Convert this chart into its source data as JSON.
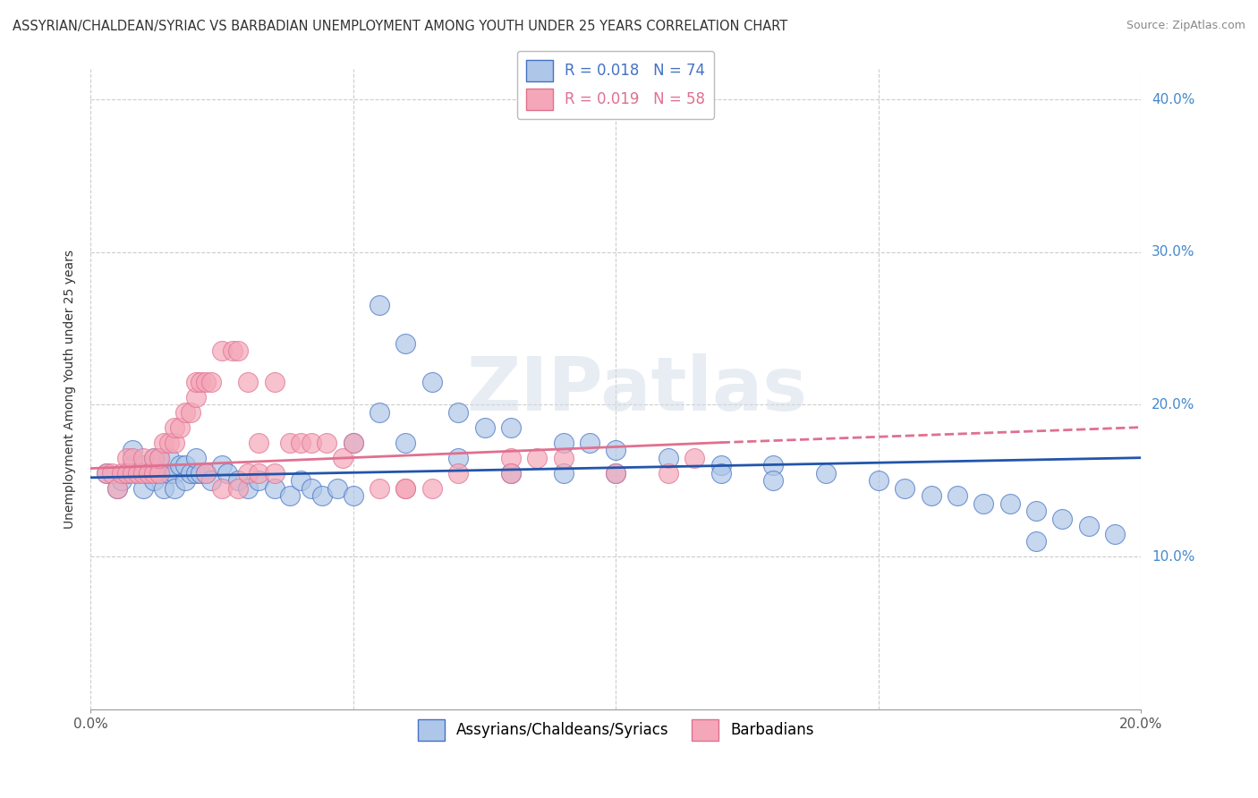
{
  "title": "ASSYRIAN/CHALDEAN/SYRIAC VS BARBADIAN UNEMPLOYMENT AMONG YOUTH UNDER 25 YEARS CORRELATION CHART",
  "source": "Source: ZipAtlas.com",
  "ylabel": "Unemployment Among Youth under 25 years",
  "legend_bottom": [
    "Assyrians/Chaldeans/Syriacs",
    "Barbadians"
  ],
  "legend_r1": "R = 0.018",
  "legend_n1": "N = 74",
  "legend_r2": "R = 0.019",
  "legend_n2": "N = 58",
  "xmin": 0.0,
  "xmax": 0.2,
  "ymin": 0.0,
  "ymax": 0.42,
  "yticks": [
    0.1,
    0.2,
    0.3,
    0.4
  ],
  "ytick_labels": [
    "10.0%",
    "20.0%",
    "30.0%",
    "40.0%"
  ],
  "xticks": [
    0.0,
    0.2
  ],
  "xtick_labels": [
    "0.0%",
    "20.0%"
  ],
  "gridline_yticks": [
    0.1,
    0.2,
    0.3,
    0.4
  ],
  "gridline_xticks": [
    0.0,
    0.05,
    0.1,
    0.15,
    0.2
  ],
  "color_blue": "#aec6e8",
  "color_pink": "#f4a7b9",
  "edge_blue": "#4472c4",
  "edge_pink": "#e07090",
  "trendline_blue": "#2255aa",
  "trendline_pink": "#cc4466",
  "background_color": "#ffffff",
  "watermark_text": "ZIPatlas",
  "blue_scatter_x": [
    0.003,
    0.005,
    0.006,
    0.007,
    0.008,
    0.008,
    0.009,
    0.01,
    0.01,
    0.011,
    0.012,
    0.012,
    0.013,
    0.013,
    0.014,
    0.014,
    0.015,
    0.015,
    0.016,
    0.016,
    0.017,
    0.018,
    0.018,
    0.019,
    0.02,
    0.02,
    0.021,
    0.022,
    0.023,
    0.025,
    0.026,
    0.028,
    0.03,
    0.032,
    0.035,
    0.038,
    0.04,
    0.042,
    0.044,
    0.047,
    0.05,
    0.055,
    0.06,
    0.065,
    0.07,
    0.075,
    0.08,
    0.09,
    0.095,
    0.1,
    0.11,
    0.12,
    0.13,
    0.14,
    0.15,
    0.155,
    0.16,
    0.165,
    0.17,
    0.175,
    0.18,
    0.185,
    0.19,
    0.195,
    0.05,
    0.055,
    0.06,
    0.07,
    0.08,
    0.09,
    0.1,
    0.12,
    0.13,
    0.18
  ],
  "blue_scatter_y": [
    0.155,
    0.145,
    0.15,
    0.155,
    0.16,
    0.17,
    0.155,
    0.145,
    0.16,
    0.155,
    0.15,
    0.165,
    0.155,
    0.165,
    0.155,
    0.145,
    0.155,
    0.165,
    0.155,
    0.145,
    0.16,
    0.15,
    0.16,
    0.155,
    0.155,
    0.165,
    0.155,
    0.155,
    0.15,
    0.16,
    0.155,
    0.15,
    0.145,
    0.15,
    0.145,
    0.14,
    0.15,
    0.145,
    0.14,
    0.145,
    0.14,
    0.265,
    0.24,
    0.215,
    0.195,
    0.185,
    0.185,
    0.175,
    0.175,
    0.17,
    0.165,
    0.16,
    0.16,
    0.155,
    0.15,
    0.145,
    0.14,
    0.14,
    0.135,
    0.135,
    0.13,
    0.125,
    0.12,
    0.115,
    0.175,
    0.195,
    0.175,
    0.165,
    0.155,
    0.155,
    0.155,
    0.155,
    0.15,
    0.11
  ],
  "pink_scatter_x": [
    0.003,
    0.004,
    0.005,
    0.006,
    0.007,
    0.007,
    0.008,
    0.008,
    0.009,
    0.01,
    0.01,
    0.011,
    0.012,
    0.012,
    0.013,
    0.013,
    0.014,
    0.015,
    0.016,
    0.016,
    0.017,
    0.018,
    0.019,
    0.02,
    0.02,
    0.021,
    0.022,
    0.023,
    0.025,
    0.027,
    0.028,
    0.03,
    0.032,
    0.035,
    0.038,
    0.04,
    0.042,
    0.045,
    0.048,
    0.05,
    0.055,
    0.06,
    0.065,
    0.07,
    0.08,
    0.085,
    0.09,
    0.1,
    0.11,
    0.115,
    0.022,
    0.025,
    0.028,
    0.03,
    0.032,
    0.035,
    0.06,
    0.08
  ],
  "pink_scatter_y": [
    0.155,
    0.155,
    0.145,
    0.155,
    0.165,
    0.155,
    0.155,
    0.165,
    0.155,
    0.155,
    0.165,
    0.155,
    0.155,
    0.165,
    0.155,
    0.165,
    0.175,
    0.175,
    0.175,
    0.185,
    0.185,
    0.195,
    0.195,
    0.205,
    0.215,
    0.215,
    0.215,
    0.215,
    0.235,
    0.235,
    0.235,
    0.215,
    0.175,
    0.215,
    0.175,
    0.175,
    0.175,
    0.175,
    0.165,
    0.175,
    0.145,
    0.145,
    0.145,
    0.155,
    0.165,
    0.165,
    0.165,
    0.155,
    0.155,
    0.165,
    0.155,
    0.145,
    0.145,
    0.155,
    0.155,
    0.155,
    0.145,
    0.155
  ],
  "title_fontsize": 10.5,
  "source_fontsize": 9,
  "axis_label_fontsize": 10,
  "tick_fontsize": 11,
  "legend_fontsize": 12
}
